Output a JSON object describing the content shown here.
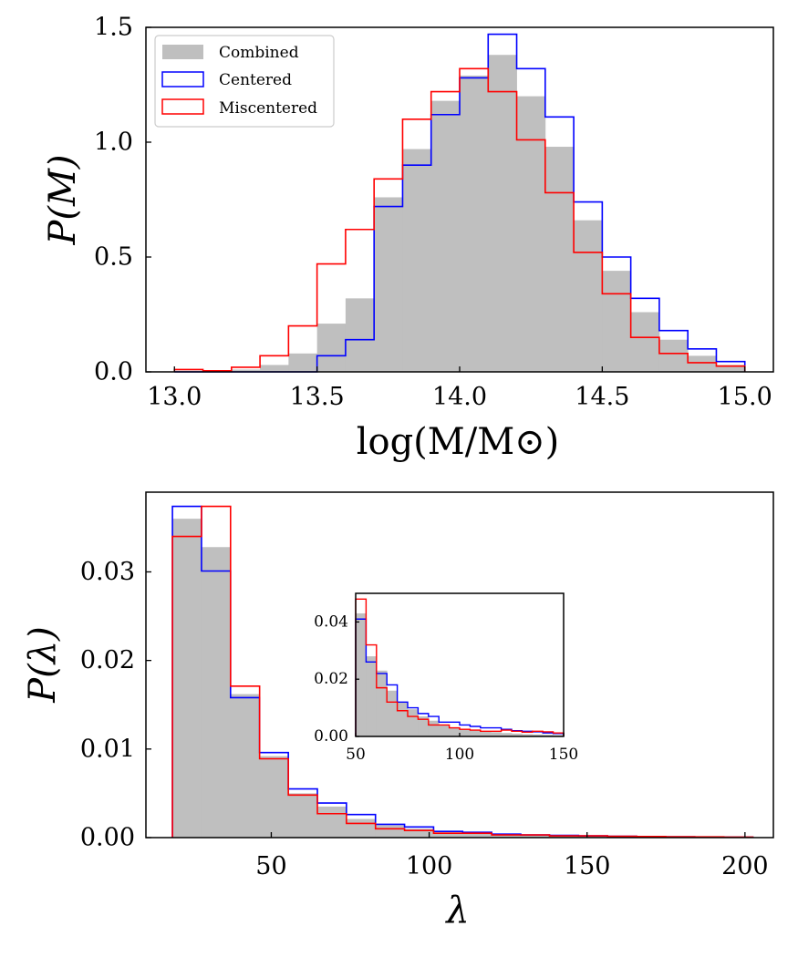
{
  "colors": {
    "combined": "#bfbfbf",
    "centered": "#0000ff",
    "miscentered": "#ff0000"
  },
  "chart_data": [
    {
      "id": "mass",
      "type": "histogram",
      "xlabel": "log(M/M⊙)",
      "ylabel": "P(M)",
      "xlim": [
        12.9,
        15.1
      ],
      "ylim": [
        0,
        1.5
      ],
      "xticks": [
        13.0,
        13.5,
        14.0,
        14.5,
        15.0
      ],
      "xtick_labels": [
        "13.0",
        "13.5",
        "14.0",
        "14.5",
        "15.0"
      ],
      "yticks": [
        0.0,
        0.5,
        1.0,
        1.5
      ],
      "ytick_labels": [
        "0.0",
        "0.5",
        "1.0",
        "1.5"
      ],
      "legend": {
        "placement": "top-left",
        "entries": [
          "Combined",
          "Centered",
          "Miscentered"
        ]
      },
      "bin_edges": [
        13.0,
        13.1,
        13.2,
        13.3,
        13.4,
        13.5,
        13.6,
        13.7,
        13.8,
        13.9,
        14.0,
        14.1,
        14.2,
        14.3,
        14.4,
        14.5,
        14.6,
        14.7,
        14.8,
        14.9,
        15.0
      ],
      "series": [
        {
          "name": "Combined",
          "style": "filled",
          "values": [
            0.005,
            0.003,
            0.01,
            0.03,
            0.08,
            0.21,
            0.32,
            0.76,
            0.97,
            1.18,
            1.29,
            1.38,
            1.2,
            0.98,
            0.66,
            0.44,
            0.26,
            0.14,
            0.07,
            0.03
          ]
        },
        {
          "name": "Centered",
          "style": "step",
          "values": [
            0.0,
            0.0,
            0.0,
            0.0,
            0.0,
            0.07,
            0.14,
            0.72,
            0.9,
            1.12,
            1.28,
            1.47,
            1.32,
            1.11,
            0.74,
            0.5,
            0.32,
            0.18,
            0.1,
            0.045
          ]
        },
        {
          "name": "Miscentered",
          "style": "step",
          "values": [
            0.01,
            0.005,
            0.02,
            0.07,
            0.2,
            0.47,
            0.62,
            0.84,
            1.1,
            1.22,
            1.32,
            1.22,
            1.01,
            0.78,
            0.52,
            0.34,
            0.15,
            0.08,
            0.04,
            0.025
          ]
        }
      ]
    },
    {
      "id": "richness",
      "type": "histogram",
      "xlabel": "λ",
      "ylabel": "P(λ)",
      "xlim": [
        10.3,
        209
      ],
      "ylim": [
        0,
        0.039
      ],
      "xticks": [
        50,
        100,
        150,
        200
      ],
      "xtick_labels": [
        "50",
        "100",
        "150",
        "200"
      ],
      "yticks": [
        0.0,
        0.01,
        0.02,
        0.03
      ],
      "ytick_labels": [
        "0.00",
        "0.01",
        "0.02",
        "0.03"
      ],
      "bin_edges": [
        18.7,
        27.9,
        37.1,
        46.3,
        55.4,
        64.6,
        73.8,
        83.0,
        92.2,
        101.4,
        110.6,
        119.8,
        129.0,
        138.1,
        147.3,
        156.5,
        165.7,
        174.9,
        184.1,
        193.3,
        202.5
      ],
      "series": [
        {
          "name": "Combined",
          "style": "filled",
          "values": [
            0.036,
            0.0328,
            0.0162,
            0.0092,
            0.005,
            0.0035,
            0.0021,
            0.0014,
            0.001,
            0.0006,
            0.0005,
            0.0004,
            0.0003,
            0.0002,
            0.00015,
            0.00012,
            0.0001,
            8e-05,
            6e-05,
            5e-05
          ]
        },
        {
          "name": "Centered",
          "style": "step",
          "values": [
            0.0374,
            0.0301,
            0.0158,
            0.0096,
            0.0055,
            0.0039,
            0.0026,
            0.0015,
            0.0012,
            0.0007,
            0.0006,
            0.0004,
            0.0003,
            0.00025,
            0.0002,
            0.00015,
            0.0001,
            8e-05,
            6e-05,
            5e-05
          ]
        },
        {
          "name": "Miscentered",
          "style": "step",
          "values": [
            0.034,
            0.0374,
            0.0171,
            0.0089,
            0.0048,
            0.0027,
            0.0016,
            0.001,
            0.0008,
            0.0005,
            0.0005,
            0.0003,
            0.0003,
            0.0002,
            0.0002,
            0.00015,
            0.00012,
            0.0001,
            8e-05,
            6e-05
          ]
        }
      ]
    },
    {
      "id": "richness_inset",
      "type": "histogram",
      "xlim": [
        50,
        150
      ],
      "ylim": [
        0,
        0.05
      ],
      "xticks": [
        50,
        100,
        150
      ],
      "xtick_labels": [
        "50",
        "100",
        "150"
      ],
      "yticks": [
        0.0,
        0.02,
        0.04
      ],
      "ytick_labels": [
        "0.00",
        "0.02",
        "0.04"
      ],
      "bin_edges": [
        50,
        55,
        60,
        65,
        70,
        75,
        80,
        85,
        90,
        95,
        100,
        105,
        110,
        115,
        120,
        125,
        130,
        135,
        140,
        145,
        150
      ],
      "series": [
        {
          "name": "Combined",
          "style": "filled",
          "values": [
            0.043,
            0.028,
            0.023,
            0.016,
            0.012,
            0.0095,
            0.007,
            0.0055,
            0.004,
            0.003,
            0.0025,
            0.0022,
            0.0018,
            0.0015,
            0.0012,
            0.001,
            0.0008,
            0.0007,
            0.0006,
            0.0005
          ]
        },
        {
          "name": "Centered",
          "style": "step",
          "values": [
            0.041,
            0.026,
            0.022,
            0.018,
            0.012,
            0.01,
            0.008,
            0.007,
            0.005,
            0.005,
            0.004,
            0.0035,
            0.003,
            0.003,
            0.0025,
            0.002,
            0.0018,
            0.0016,
            0.0012,
            0.001
          ]
        },
        {
          "name": "Miscentered",
          "style": "step",
          "values": [
            0.048,
            0.032,
            0.017,
            0.012,
            0.009,
            0.007,
            0.006,
            0.004,
            0.004,
            0.003,
            0.0025,
            0.0022,
            0.0018,
            0.0018,
            0.0022,
            0.0018,
            0.0015,
            0.0018,
            0.0016,
            0.0012
          ]
        }
      ]
    }
  ]
}
